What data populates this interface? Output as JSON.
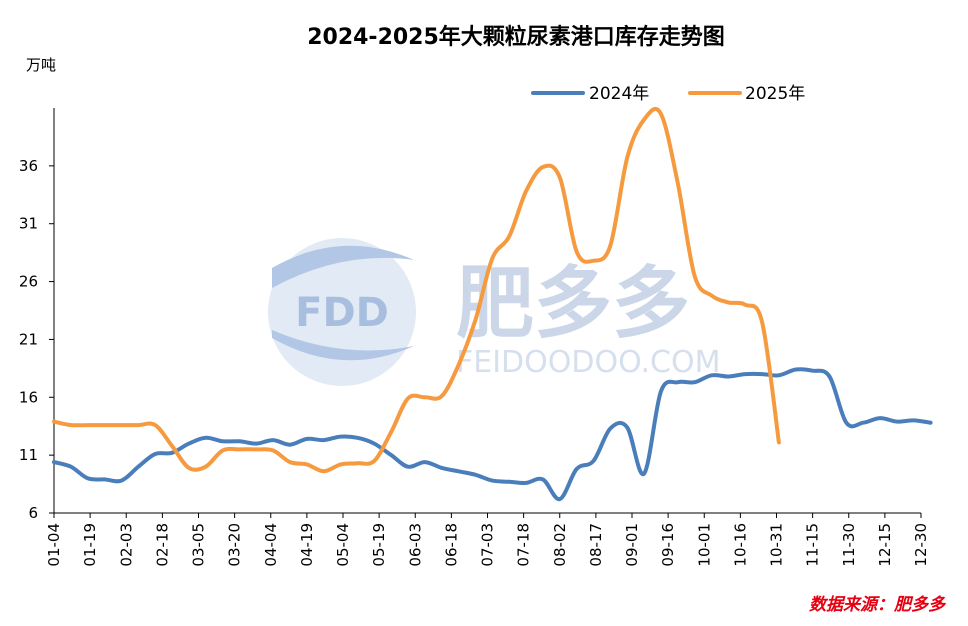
{
  "chart_data": {
    "type": "line",
    "title": "2024-2025年大颗粒尿素港口库存走势图",
    "ylabel": "万吨",
    "xlabel": "",
    "ylim": [
      6,
      41
    ],
    "yticks": [
      6,
      11,
      16,
      21,
      26,
      31,
      36
    ],
    "x_ticks": [
      "01-04",
      "01-19",
      "02-03",
      "02-18",
      "03-05",
      "03-20",
      "04-04",
      "04-19",
      "05-04",
      "05-19",
      "06-03",
      "06-18",
      "07-03",
      "07-18",
      "08-02",
      "08-17",
      "09-01",
      "09-16",
      "10-01",
      "10-16",
      "10-31",
      "11-15",
      "11-30",
      "12-15",
      "12-30"
    ],
    "series": [
      {
        "name": "2024年",
        "color": "#4a7ebb",
        "values": [
          10.4,
          10.0,
          9.0,
          8.9,
          8.8,
          10.0,
          11.1,
          11.2,
          12.0,
          12.5,
          12.2,
          12.2,
          12.0,
          12.3,
          11.9,
          12.4,
          12.3,
          12.6,
          12.5,
          12.0,
          11.0,
          10.0,
          10.4,
          9.9,
          9.6,
          9.3,
          8.8,
          8.7,
          8.6,
          8.9,
          7.2,
          9.8,
          10.5,
          13.3,
          13.4,
          9.4,
          16.5,
          17.3,
          17.3,
          17.9,
          17.8,
          18.0,
          18.0,
          17.9,
          18.4,
          18.3,
          17.8,
          13.8,
          13.8,
          14.2,
          13.9,
          14.0,
          13.8
        ]
      },
      {
        "name": "2025年",
        "color": "#f59a3f",
        "values": [
          13.9,
          13.6,
          13.6,
          13.6,
          13.6,
          13.6,
          13.6,
          11.8,
          9.9,
          10.0,
          11.4,
          11.5,
          11.5,
          11.4,
          10.4,
          10.2,
          9.6,
          10.2,
          10.3,
          10.5,
          13.0,
          15.9,
          16.0,
          16.1,
          18.8,
          22.7,
          28.0,
          29.9,
          33.8,
          35.9,
          35.0,
          28.6,
          27.8,
          29.1,
          36.7,
          40.0,
          40.5,
          34.5,
          26.5,
          24.8,
          24.2,
          24.0,
          22.5,
          12.1
        ]
      }
    ],
    "legend": [
      "2024年",
      "2025年"
    ],
    "legend_position": "top-right",
    "grid": false
  },
  "watermark": {
    "logo": "FDD",
    "name": "肥多多",
    "site": "FEIDOODOO.COM"
  },
  "source": "数据来源：肥多多"
}
